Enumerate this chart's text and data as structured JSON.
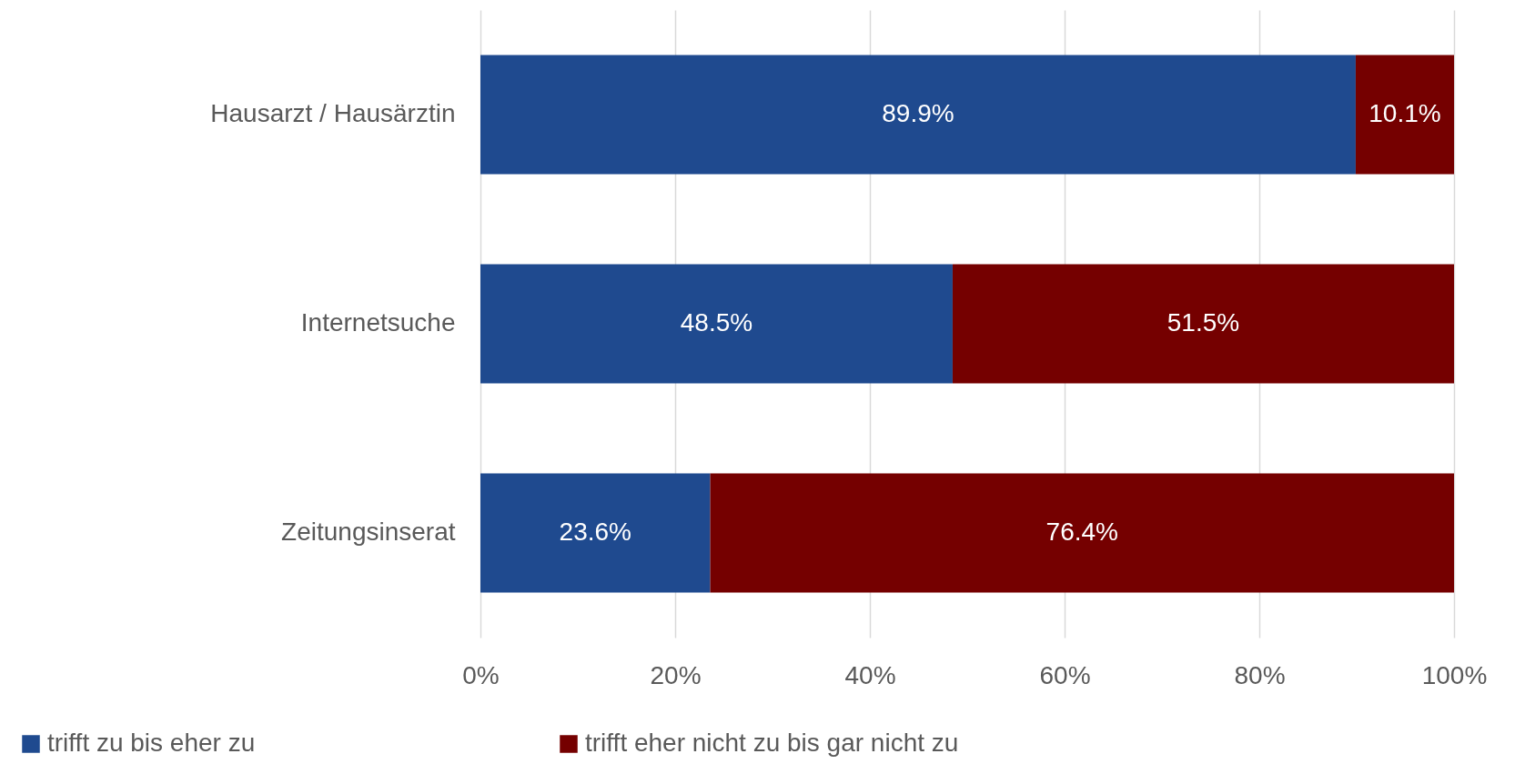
{
  "chart_data": {
    "type": "bar",
    "orientation": "horizontal",
    "stacked": true,
    "categories": [
      "Hausarzt / Hausärztin",
      "Internetsuche",
      "Zeitungsinserat"
    ],
    "series": [
      {
        "name": "trifft zu bis eher zu",
        "color": "#1f4a8f",
        "values": [
          89.9,
          48.5,
          23.6
        ],
        "value_labels": [
          "89.9%",
          "48.5%",
          "23.6%"
        ]
      },
      {
        "name": "trifft eher nicht zu bis gar nicht zu",
        "color": "#750000",
        "values": [
          10.1,
          51.5,
          76.4
        ],
        "value_labels": [
          "10.1%",
          "51.5%",
          "76.4%"
        ]
      }
    ],
    "xlim": [
      0,
      100
    ],
    "xticks": [
      {
        "value": 0,
        "label": "0%"
      },
      {
        "value": 20,
        "label": "20%"
      },
      {
        "value": 40,
        "label": "40%"
      },
      {
        "value": 60,
        "label": "60%"
      },
      {
        "value": 80,
        "label": "80%"
      },
      {
        "value": 100,
        "label": "100%"
      }
    ],
    "grid": "x",
    "legend": "bottom left"
  }
}
